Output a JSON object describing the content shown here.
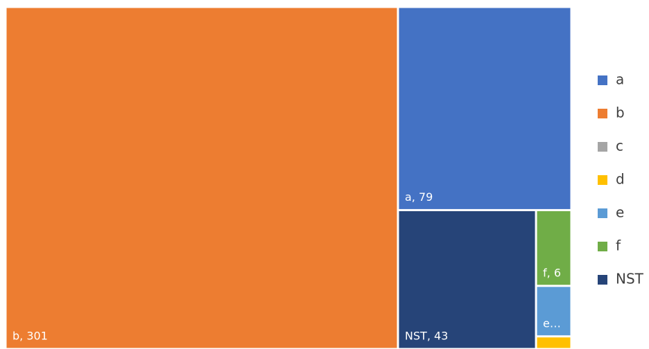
{
  "chart_data": {
    "type": "treemap",
    "categories": [
      "a",
      "b",
      "c",
      "d",
      "e",
      "f",
      "NST"
    ],
    "values": [
      79,
      301,
      0,
      1,
      4,
      6,
      43
    ],
    "value_labels": [
      "a, 79",
      "b, 301",
      null,
      null,
      "e…",
      "f, 6",
      "NST, 43"
    ],
    "colors": [
      "#4472c4",
      "#ed7d31",
      "#a5a5a5",
      "#ffc000",
      "#5b9bd5",
      "#70ad47",
      "#264478"
    ],
    "legend": "right"
  }
}
